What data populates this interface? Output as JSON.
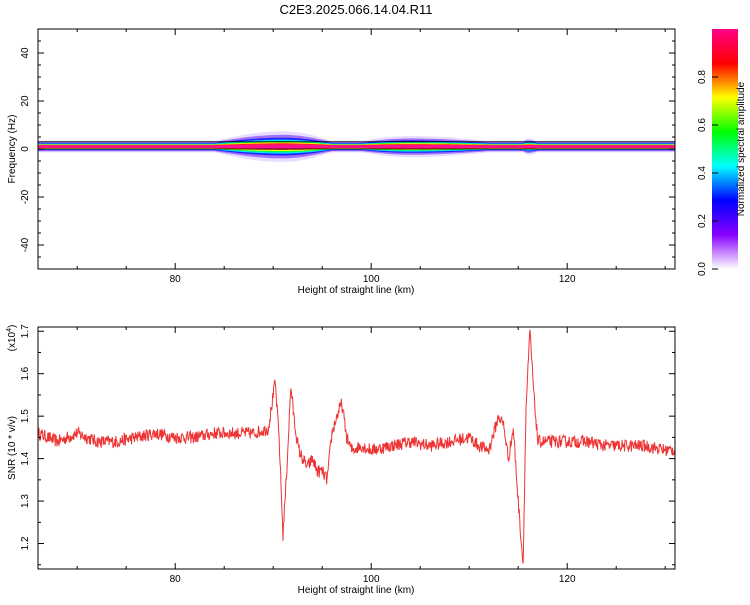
{
  "title": "C2E3.2025.066.14.04.R11",
  "chart_data": [
    {
      "type": "heatmap",
      "title": "C2E3.2025.066.14.04.R11",
      "xlabel": "Height of straight line (km)",
      "ylabel": "Frequency (Hz)",
      "xlim": [
        66,
        131
      ],
      "ylim": [
        -50,
        50
      ],
      "xticks": [
        80,
        100,
        120
      ],
      "yticks": [
        40,
        20,
        0,
        -20,
        -40
      ],
      "band": {
        "center_freq": 1,
        "base_halfwidth": 2,
        "spread_regions": [
          {
            "x_start": 84,
            "x_end": 96,
            "peak_x": 91,
            "max_halfwidth": 6
          },
          {
            "x_start": 99,
            "x_end": 112,
            "peak_x": 104,
            "max_halfwidth": 4
          },
          {
            "x_start": 115.5,
            "x_end": 117,
            "peak_x": 116,
            "max_halfwidth": 3
          }
        ]
      },
      "colorbar": {
        "label": "Normalized spectral amplitude",
        "range": [
          0,
          1
        ],
        "ticks": [
          "0.0",
          "0.2",
          "0.4",
          "0.6",
          "0.8"
        ],
        "colors": [
          "#ffffff",
          "#8800ff",
          "#0000ff",
          "#00ffff",
          "#00ff00",
          "#ffff00",
          "#ff0000",
          "#ff0088"
        ]
      }
    },
    {
      "type": "line",
      "xlabel": "Height of straight line (km)",
      "ylabel": "SNR (10 * v/v)",
      "scale_label": "(x10^4)",
      "scale_base": "(x10",
      "scale_exp": "4",
      "scale_close": ")",
      "xlim": [
        66,
        131
      ],
      "ylim": [
        1.14,
        1.71
      ],
      "xticks": [
        80,
        100,
        120
      ],
      "yticks": [
        "1.2",
        "1.3",
        "1.4",
        "1.5",
        "1.6",
        "1.7"
      ],
      "line_color": "#ee3333",
      "series": [
        {
          "x": [
            66,
            68,
            70,
            72,
            74,
            76,
            78,
            80,
            82,
            84,
            86,
            88,
            89.5,
            90.2,
            90.6,
            91,
            91.4,
            91.8,
            92.2,
            92.6,
            93,
            93.5,
            94,
            94.5,
            95,
            95.5,
            96,
            96.5,
            97,
            97.5,
            98,
            99,
            100,
            102,
            104,
            106,
            108,
            110,
            111,
            112,
            113,
            113.5,
            114,
            114.5,
            115,
            115.5,
            115.8,
            116.2,
            116.6,
            117,
            118,
            120,
            122,
            124,
            126,
            128,
            130,
            131
          ],
          "y": [
            1.46,
            1.44,
            1.46,
            1.44,
            1.44,
            1.45,
            1.46,
            1.45,
            1.45,
            1.46,
            1.46,
            1.46,
            1.47,
            1.58,
            1.45,
            1.22,
            1.38,
            1.57,
            1.48,
            1.42,
            1.4,
            1.38,
            1.4,
            1.37,
            1.37,
            1.35,
            1.46,
            1.5,
            1.53,
            1.45,
            1.42,
            1.43,
            1.42,
            1.43,
            1.44,
            1.43,
            1.44,
            1.45,
            1.43,
            1.42,
            1.5,
            1.48,
            1.4,
            1.47,
            1.3,
            1.15,
            1.52,
            1.7,
            1.55,
            1.44,
            1.44,
            1.44,
            1.44,
            1.43,
            1.43,
            1.43,
            1.42,
            1.42
          ]
        }
      ]
    }
  ]
}
